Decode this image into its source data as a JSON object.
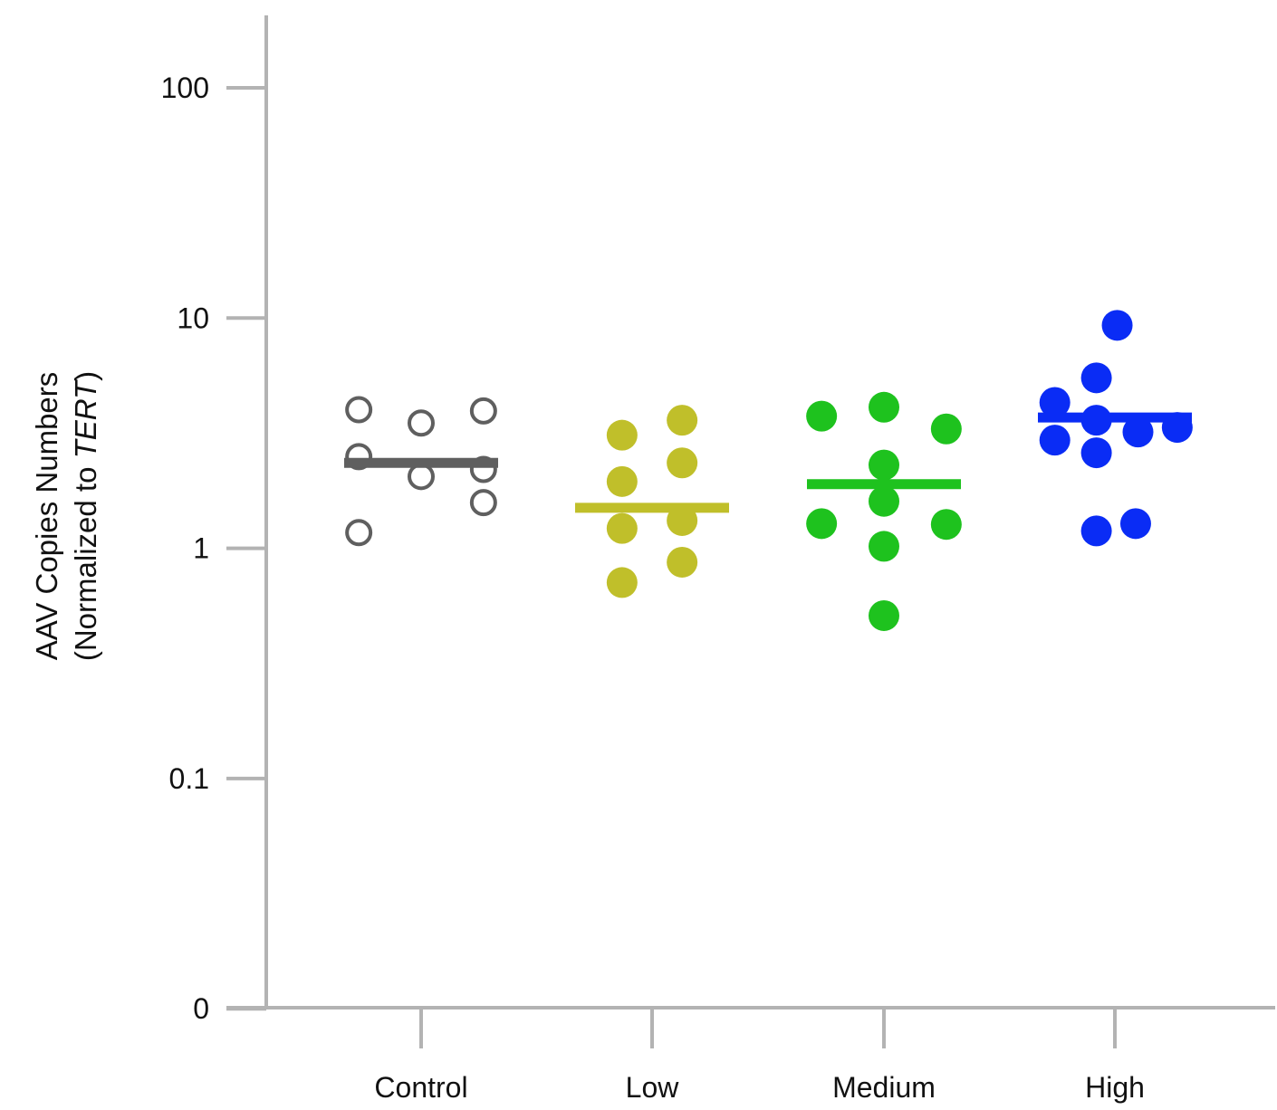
{
  "chart_data": {
    "type": "scatter",
    "title": "",
    "xlabel": "",
    "ylabel_line1": "AAV  Copies Numbers",
    "ylabel_line2_prefix": "(Normalized to ",
    "ylabel_line2_italic": "TERT",
    "ylabel_line2_suffix": ")",
    "y_scale": "log",
    "y_ticks": [
      {
        "value": 0.01,
        "label": "0"
      },
      {
        "value": 0.1,
        "label": "0.1"
      },
      {
        "value": 1,
        "label": "1"
      },
      {
        "value": 10,
        "label": "10"
      },
      {
        "value": 100,
        "label": "100"
      }
    ],
    "ylim": [
      0.01,
      200
    ],
    "grid": false,
    "categories": [
      "Control",
      "Low",
      "Medium",
      "High"
    ],
    "series": [
      {
        "category": "Control",
        "color": "#5f5f5f",
        "marker": "open-circle",
        "mean": 2.35,
        "points": [
          {
            "offset": -0.27,
            "y": 4.0
          },
          {
            "offset": -0.27,
            "y": 2.5
          },
          {
            "offset": -0.27,
            "y": 1.17
          },
          {
            "offset": 0.0,
            "y": 3.5
          },
          {
            "offset": 0.0,
            "y": 2.05
          },
          {
            "offset": 0.27,
            "y": 3.95
          },
          {
            "offset": 0.27,
            "y": 2.2
          },
          {
            "offset": 0.27,
            "y": 1.58
          }
        ]
      },
      {
        "category": "Low",
        "color": "#c0bf2a",
        "marker": "filled-circle",
        "mean": 1.5,
        "points": [
          {
            "offset": -0.13,
            "y": 3.1
          },
          {
            "offset": -0.13,
            "y": 1.95
          },
          {
            "offset": -0.13,
            "y": 1.22
          },
          {
            "offset": -0.13,
            "y": 0.71
          },
          {
            "offset": 0.13,
            "y": 3.6
          },
          {
            "offset": 0.13,
            "y": 2.35
          },
          {
            "offset": 0.13,
            "y": 1.32
          },
          {
            "offset": 0.13,
            "y": 0.87
          }
        ]
      },
      {
        "category": "Medium",
        "color": "#1ec21e",
        "marker": "filled-circle",
        "mean": 1.9,
        "points": [
          {
            "offset": -0.27,
            "y": 3.75
          },
          {
            "offset": -0.27,
            "y": 1.28
          },
          {
            "offset": 0.0,
            "y": 4.1
          },
          {
            "offset": 0.0,
            "y": 2.3
          },
          {
            "offset": 0.0,
            "y": 1.6
          },
          {
            "offset": 0.0,
            "y": 1.02
          },
          {
            "offset": 0.0,
            "y": 0.51
          },
          {
            "offset": 0.27,
            "y": 3.3
          },
          {
            "offset": 0.27,
            "y": 1.27
          }
        ]
      },
      {
        "category": "High",
        "color": "#0a2cf5",
        "marker": "filled-circle",
        "mean": 3.7,
        "points": [
          {
            "offset": -0.26,
            "y": 4.3
          },
          {
            "offset": -0.26,
            "y": 2.95
          },
          {
            "offset": -0.08,
            "y": 5.5
          },
          {
            "offset": -0.08,
            "y": 3.6
          },
          {
            "offset": -0.08,
            "y": 2.6
          },
          {
            "offset": -0.08,
            "y": 1.19
          },
          {
            "offset": 0.01,
            "y": 9.3
          },
          {
            "offset": 0.1,
            "y": 3.2
          },
          {
            "offset": 0.09,
            "y": 1.28
          },
          {
            "offset": 0.27,
            "y": 3.35
          }
        ]
      }
    ]
  }
}
